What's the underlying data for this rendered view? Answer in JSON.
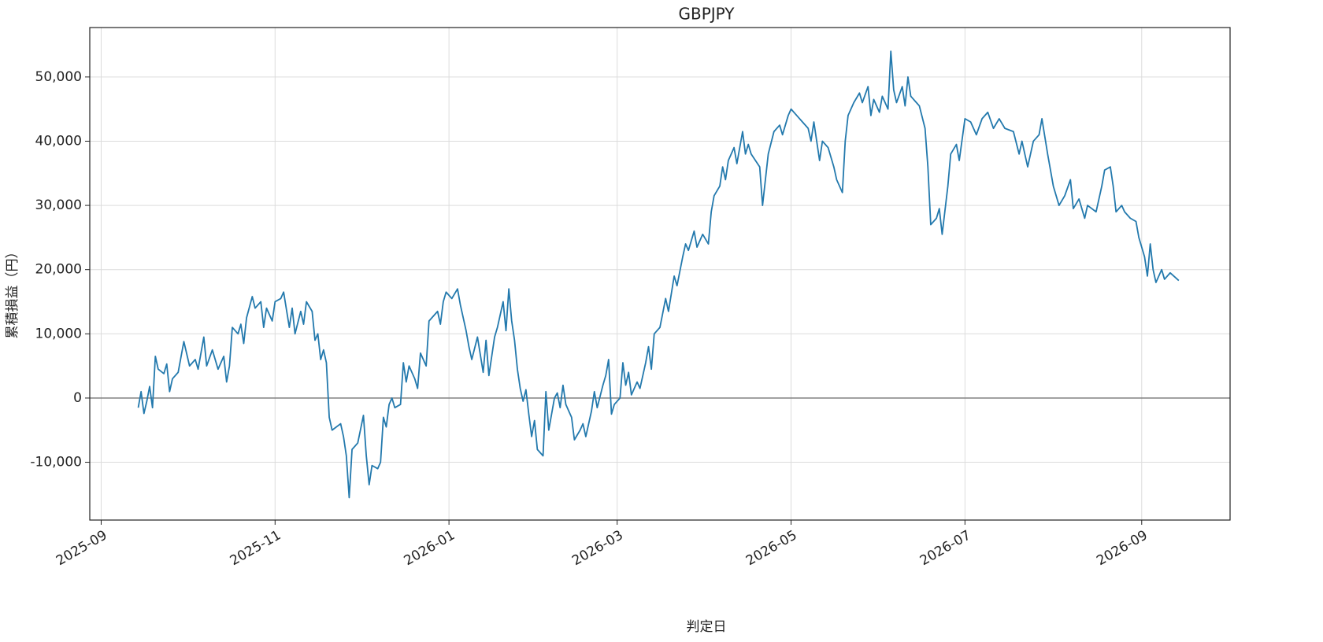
{
  "chart_data": {
    "type": "line",
    "title": "GBPJPY",
    "x_label": "判定日",
    "y_label": "累積損益（円）",
    "grid": true,
    "reference_line": 0,
    "xlim": [
      "2025-08-28",
      "2026-10-02"
    ],
    "xticks": [
      "2025-09",
      "2025-11",
      "2026-01",
      "2026-03",
      "2026-05",
      "2026-07",
      "2026-09"
    ],
    "ylim": [
      -19000,
      57700
    ],
    "yticks": [
      {
        "value": -10000,
        "label": "-10,000"
      },
      0,
      {
        "value": 10000,
        "label": "10,000"
      },
      {
        "value": 20000,
        "label": "20,000"
      },
      {
        "value": 30000,
        "label": "30,000"
      },
      {
        "value": 40000,
        "label": "40,000"
      },
      {
        "value": 50000,
        "label": "50,000"
      }
    ],
    "x": [
      "2025-09-14",
      "2025-09-15",
      "2025-09-16",
      "2025-09-17",
      "2025-09-18",
      "2025-09-19",
      "2025-09-20",
      "2025-09-21",
      "2025-09-23",
      "2025-09-24",
      "2025-09-25",
      "2025-09-26",
      "2025-09-28",
      "2025-09-30",
      "2025-10-02",
      "2025-10-04",
      "2025-10-05",
      "2025-10-07",
      "2025-10-08",
      "2025-10-10",
      "2025-10-12",
      "2025-10-14",
      "2025-10-15",
      "2025-10-16",
      "2025-10-17",
      "2025-10-19",
      "2025-10-20",
      "2025-10-21",
      "2025-10-22",
      "2025-10-24",
      "2025-10-25",
      "2025-10-27",
      "2025-10-28",
      "2025-10-29",
      "2025-10-31",
      "2025-11-01",
      "2025-11-03",
      "2025-11-04",
      "2025-11-06",
      "2025-11-07",
      "2025-11-08",
      "2025-11-10",
      "2025-11-11",
      "2025-11-12",
      "2025-11-14",
      "2025-11-15",
      "2025-11-16",
      "2025-11-17",
      "2025-11-18",
      "2025-11-19",
      "2025-11-20",
      "2025-11-21",
      "2025-11-24",
      "2025-11-25",
      "2025-11-26",
      "2025-11-27",
      "2025-11-28",
      "2025-11-30",
      "2025-12-02",
      "2025-12-03",
      "2025-12-04",
      "2025-12-05",
      "2025-12-07",
      "2025-12-08",
      "2025-12-09",
      "2025-12-10",
      "2025-12-11",
      "2025-12-12",
      "2025-12-13",
      "2025-12-15",
      "2025-12-16",
      "2025-12-17",
      "2025-12-18",
      "2025-12-20",
      "2025-12-21",
      "2025-12-22",
      "2025-12-24",
      "2025-12-25",
      "2025-12-28",
      "2025-12-29",
      "2025-12-30",
      "2025-12-31",
      "2026-01-02",
      "2026-01-04",
      "2026-01-05",
      "2026-01-07",
      "2026-01-08",
      "2026-01-09",
      "2026-01-11",
      "2026-01-13",
      "2026-01-14",
      "2026-01-15",
      "2026-01-17",
      "2026-01-18",
      "2026-01-20",
      "2026-01-21",
      "2026-01-22",
      "2026-01-23",
      "2026-01-24",
      "2026-01-25",
      "2026-01-26",
      "2026-01-27",
      "2026-01-28",
      "2026-01-29",
      "2026-01-30",
      "2026-01-31",
      "2026-02-01",
      "2026-02-03",
      "2026-02-04",
      "2026-02-05",
      "2026-02-07",
      "2026-02-08",
      "2026-02-09",
      "2026-02-10",
      "2026-02-11",
      "2026-02-13",
      "2026-02-14",
      "2026-02-16",
      "2026-02-17",
      "2026-02-18",
      "2026-02-20",
      "2026-02-21",
      "2026-02-22",
      "2026-02-24",
      "2026-02-25",
      "2026-02-26",
      "2026-02-27",
      "2026-02-28",
      "2026-03-02",
      "2026-03-03",
      "2026-03-04",
      "2026-03-05",
      "2026-03-06",
      "2026-03-08",
      "2026-03-09",
      "2026-03-11",
      "2026-03-12",
      "2026-03-13",
      "2026-03-14",
      "2026-03-16",
      "2026-03-18",
      "2026-03-19",
      "2026-03-21",
      "2026-03-22",
      "2026-03-24",
      "2026-03-25",
      "2026-03-26",
      "2026-03-28",
      "2026-03-29",
      "2026-03-31",
      "2026-04-02",
      "2026-04-03",
      "2026-04-04",
      "2026-04-06",
      "2026-04-07",
      "2026-04-08",
      "2026-04-09",
      "2026-04-11",
      "2026-04-12",
      "2026-04-14",
      "2026-04-15",
      "2026-04-16",
      "2026-04-17",
      "2026-04-20",
      "2026-04-21",
      "2026-04-22",
      "2026-04-23",
      "2026-04-25",
      "2026-04-27",
      "2026-04-28",
      "2026-04-30",
      "2026-05-01",
      "2026-05-03",
      "2026-05-05",
      "2026-05-07",
      "2026-05-08",
      "2026-05-09",
      "2026-05-11",
      "2026-05-12",
      "2026-05-14",
      "2026-05-16",
      "2026-05-17",
      "2026-05-19",
      "2026-05-20",
      "2026-05-21",
      "2026-05-23",
      "2026-05-25",
      "2026-05-26",
      "2026-05-28",
      "2026-05-29",
      "2026-05-30",
      "2026-06-01",
      "2026-06-02",
      "2026-06-04",
      "2026-06-05",
      "2026-06-06",
      "2026-06-07",
      "2026-06-09",
      "2026-06-10",
      "2026-06-11",
      "2026-06-12",
      "2026-06-14",
      "2026-06-15",
      "2026-06-17",
      "2026-06-18",
      "2026-06-19",
      "2026-06-21",
      "2026-06-22",
      "2026-06-23",
      "2026-06-25",
      "2026-06-26",
      "2026-06-28",
      "2026-06-29",
      "2026-07-01",
      "2026-07-03",
      "2026-07-05",
      "2026-07-07",
      "2026-07-09",
      "2026-07-11",
      "2026-07-13",
      "2026-07-15",
      "2026-07-18",
      "2026-07-20",
      "2026-07-21",
      "2026-07-23",
      "2026-07-25",
      "2026-07-27",
      "2026-07-28",
      "2026-07-30",
      "2026-08-01",
      "2026-08-03",
      "2026-08-05",
      "2026-08-07",
      "2026-08-08",
      "2026-08-10",
      "2026-08-12",
      "2026-08-13",
      "2026-08-16",
      "2026-08-18",
      "2026-08-19",
      "2026-08-21",
      "2026-08-22",
      "2026-08-23",
      "2026-08-25",
      "2026-08-26",
      "2026-08-28",
      "2026-08-30",
      "2026-08-31",
      "2026-09-02",
      "2026-09-03",
      "2026-09-04",
      "2026-09-05",
      "2026-09-06",
      "2026-09-08",
      "2026-09-09",
      "2026-09-11",
      "2026-09-14"
    ],
    "series": [
      {
        "name": "GBPJPY",
        "color": "#2379ad",
        "values": [
          -1500,
          1000,
          -2400,
          -500,
          1800,
          -1500,
          6500,
          4500,
          3800,
          5300,
          1000,
          3000,
          4000,
          8800,
          5000,
          6000,
          4500,
          9500,
          5000,
          7500,
          4500,
          6500,
          2500,
          5000,
          11000,
          10000,
          11500,
          8500,
          12500,
          15800,
          14000,
          15000,
          11000,
          14000,
          12000,
          15000,
          15500,
          16500,
          11000,
          14000,
          10000,
          13500,
          11500,
          15000,
          13500,
          9000,
          10000,
          6000,
          7500,
          5500,
          -3000,
          -5000,
          -4000,
          -6000,
          -9000,
          -15500,
          -8000,
          -7000,
          -2700,
          -9000,
          -13500,
          -10500,
          -11000,
          -10000,
          -3000,
          -4500,
          -1000,
          0,
          -1500,
          -1000,
          5500,
          2500,
          5000,
          3000,
          1500,
          7000,
          5000,
          12000,
          13500,
          11500,
          15000,
          16500,
          15500,
          17000,
          14500,
          10500,
          8000,
          6000,
          9500,
          4000,
          9000,
          3500,
          9500,
          11000,
          15000,
          10500,
          17000,
          12000,
          9000,
          4500,
          1500,
          -500,
          1300,
          -2500,
          -6000,
          -3500,
          -8000,
          -9000,
          1000,
          -5000,
          0,
          800,
          -1500,
          2000,
          -1000,
          -3000,
          -6500,
          -5000,
          -4000,
          -6000,
          -2000,
          1000,
          -1500,
          2000,
          3500,
          6000,
          -2500,
          -1000,
          0,
          5500,
          2000,
          4000,
          500,
          2500,
          1500,
          5500,
          8000,
          4500,
          10000,
          11000,
          15500,
          13500,
          19000,
          17500,
          22000,
          24000,
          23000,
          26000,
          23500,
          25500,
          24000,
          29000,
          31500,
          33000,
          36000,
          34000,
          37000,
          39000,
          36500,
          41500,
          38000,
          39500,
          38000,
          36000,
          30000,
          34000,
          38000,
          41500,
          42500,
          41000,
          44000,
          45000,
          44000,
          43000,
          42000,
          40000,
          43000,
          37000,
          40000,
          39000,
          36000,
          34000,
          32000,
          40000,
          44000,
          46000,
          47500,
          46000,
          48500,
          44000,
          46500,
          44500,
          47000,
          45000,
          54000,
          48000,
          46000,
          48500,
          45500,
          50000,
          47000,
          46000,
          45500,
          42000,
          36000,
          27000,
          28000,
          29500,
          25500,
          33000,
          38000,
          39500,
          37000,
          43500,
          43000,
          41000,
          43500,
          44500,
          42000,
          43500,
          42000,
          41500,
          38000,
          40000,
          36000,
          40000,
          41000,
          43500,
          38000,
          33000,
          30000,
          31500,
          34000,
          29500,
          31000,
          28000,
          30000,
          29000,
          33000,
          35500,
          36000,
          33000,
          29000,
          30000,
          29000,
          28000,
          27500,
          25000,
          22000,
          19000,
          24000,
          20000,
          18000,
          20000,
          18500,
          19500,
          18300
        ]
      }
    ]
  }
}
